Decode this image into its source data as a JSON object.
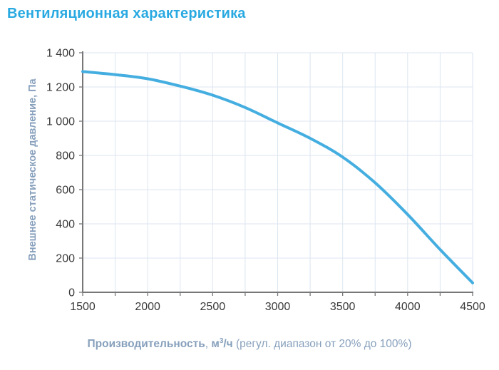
{
  "chart_data": {
    "type": "line",
    "title": "Вентиляционная характеристика",
    "ylabel": "Внешнее статическое давление, Па",
    "xlabel": "Производительность, м3/ч (регул. диапазон от 20% до 100%)",
    "x": [
      1500,
      1750,
      2000,
      2250,
      2500,
      2750,
      3000,
      3250,
      3500,
      3750,
      4000,
      4250,
      4500
    ],
    "y": [
      1290,
      1272,
      1248,
      1205,
      1152,
      1080,
      990,
      900,
      790,
      640,
      455,
      250,
      55
    ],
    "xlim": [
      1500,
      4500
    ],
    "ylim": [
      0,
      1400
    ],
    "x_ticks": [
      1500,
      2000,
      2500,
      3000,
      3500,
      4000,
      4500
    ],
    "x_tick_labels": [
      "1500",
      "2000",
      "2500",
      "3000",
      "3500",
      "4000",
      "4500"
    ],
    "x_minor_tick_step": 250,
    "y_ticks": [
      0,
      200,
      400,
      600,
      800,
      1000,
      1200,
      1400
    ],
    "y_tick_labels": [
      "0",
      "200",
      "400",
      "600",
      "800",
      "1 000",
      "1 200",
      "1 400"
    ],
    "grid": true,
    "legend": "none",
    "colors": {
      "curve": "#45AEE0",
      "title": "#29A9E1",
      "axis_label": "#87A0BC",
      "tick_label": "#3A3A3A",
      "axis_line": "#777777",
      "grid_line": "#DCE6F0"
    }
  },
  "caption": {
    "bold": "Производительность",
    "sep": ", ",
    "unit_base": "м",
    "unit_sup": "3",
    "unit_rest": "/ч",
    "note": " (регул. диапазон от 20% до 100%)"
  }
}
